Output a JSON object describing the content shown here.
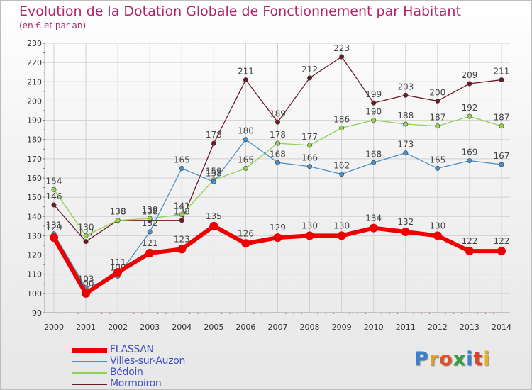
{
  "title": "Evolution de la Dotation Globale de Fonctionnement par Habitant",
  "subtitle": "(en € et par an)",
  "logo_text": "Proxiti",
  "colors": {
    "title": "#b0266b",
    "legend_text": "#4050c8",
    "grid": "#d0d0d0",
    "axis_text": "#333333"
  },
  "chart_data": {
    "type": "line",
    "title": "Evolution de la Dotation Globale de Fonctionnement par Habitant",
    "subtitle": "(en € et par an)",
    "xlabel": "",
    "ylabel": "",
    "x": [
      "2000",
      "2001",
      "2002",
      "2003",
      "2004",
      "2005",
      "2006",
      "2007",
      "2008",
      "2009",
      "2010",
      "2011",
      "2012",
      "2013",
      "2014"
    ],
    "ylim": [
      90,
      230
    ],
    "yticks": [
      90,
      100,
      110,
      120,
      130,
      140,
      150,
      160,
      170,
      180,
      190,
      200,
      210,
      220,
      230
    ],
    "grid": true,
    "legend_position": "bottom-left",
    "series": [
      {
        "name": "Mormoiron",
        "color": "#6b1a22",
        "values": [
          146,
          127,
          138,
          138,
          138,
          178,
          211,
          189,
          212,
          223,
          199,
          203,
          200,
          209,
          211
        ]
      },
      {
        "name": "Bédoin",
        "color": "#8fd150",
        "values": [
          154,
          130,
          138,
          139,
          141,
          159,
          165,
          178,
          177,
          186,
          190,
          188,
          187,
          192,
          187
        ]
      },
      {
        "name": "Villes-sur-Auzon",
        "color": "#4a90c8",
        "values": [
          131,
          103,
          109,
          132,
          165,
          158,
          180,
          168,
          166,
          162,
          168,
          173,
          165,
          169,
          167
        ]
      },
      {
        "name": "FLASSAN",
        "color": "#ee0000",
        "values": [
          129,
          100,
          111,
          121,
          123,
          135,
          126,
          129,
          130,
          130,
          134,
          132,
          130,
          122,
          122
        ]
      }
    ],
    "legend_order": [
      "FLASSAN",
      "Villes-sur-Auzon",
      "Bédoin",
      "Mormoiron"
    ]
  }
}
